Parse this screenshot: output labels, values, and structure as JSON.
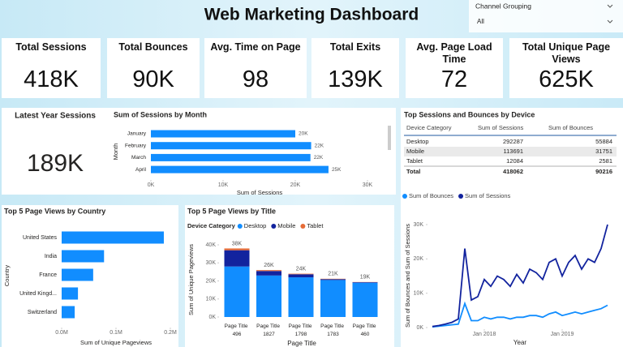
{
  "header": {
    "title": "Web Marketing Dashboard"
  },
  "slicer": {
    "label": "Channel Grouping",
    "value": "All"
  },
  "kpis": [
    {
      "label": "Total Sessions",
      "value": "418K"
    },
    {
      "label": "Total Bounces",
      "value": "90K"
    },
    {
      "label": "Avg. Time on Page",
      "value": "98"
    },
    {
      "label": "Total Exits",
      "value": "139K"
    },
    {
      "label": "Avg. Page Load Time",
      "value": "72"
    },
    {
      "label": "Total Unique Page Views",
      "value": "625K"
    }
  ],
  "latest_year": {
    "label": "Latest Year Sessions",
    "value": "189K"
  },
  "device_table": {
    "title": "Top Sessions and Bounces by Device",
    "columns": [
      "Device Category",
      "Sum of Sessions",
      "Sum of Bounces"
    ],
    "rows": [
      [
        "Desktop",
        292287,
        55884
      ],
      [
        "Mobile",
        113691,
        31751
      ],
      [
        "Tablet",
        12084,
        2581
      ]
    ],
    "total": [
      "Total",
      418062,
      90216
    ]
  },
  "chart_data": [
    {
      "type": "bar",
      "orientation": "horizontal",
      "title": "Sum of Sessions by Month",
      "categories": [
        "January",
        "February",
        "March",
        "April"
      ],
      "values": [
        20000,
        22200,
        22100,
        24600
      ],
      "value_labels": [
        "20K",
        "22K",
        "22K",
        "25K"
      ],
      "color": "#118DFF",
      "xlim": [
        0,
        30000
      ],
      "xticks": [
        {
          "value": 0,
          "label": "0K"
        },
        {
          "value": 10000,
          "label": "10K"
        },
        {
          "value": 20000,
          "label": "20K"
        },
        {
          "value": 30000,
          "label": "30K"
        }
      ],
      "xlabel": "Sum of Sessions",
      "ylabel": "Month"
    },
    {
      "type": "bar",
      "orientation": "horizontal",
      "title": "Top 5 Page Views by Country",
      "categories": [
        "United States",
        "India",
        "France",
        "United Kingd...",
        "Switzerland"
      ],
      "values": [
        188000,
        78000,
        58000,
        30000,
        24000
      ],
      "color": "#118DFF",
      "xlim": [
        0,
        200000
      ],
      "xticks": [
        {
          "value": 0,
          "label": "0.0M"
        },
        {
          "value": 100000,
          "label": "0.1M"
        },
        {
          "value": 200000,
          "label": "0.2M"
        }
      ],
      "xlabel": "Sum of Unique Pageviews",
      "ylabel": "Country"
    },
    {
      "type": "stacked_bar",
      "title": "Top 5 Page Views by Title",
      "legend_title": "Device Category",
      "categories": [
        "Page Title 496",
        "Page Title 1827",
        "Page Title 1798",
        "Page Title 1783",
        "Page Title 460"
      ],
      "series": [
        {
          "name": "Desktop",
          "color": "#118DFF",
          "values": [
            28000,
            23000,
            22000,
            20500,
            19000
          ]
        },
        {
          "name": "Mobile",
          "color": "#12239E",
          "values": [
            9000,
            2500,
            1700,
            500,
            300
          ]
        },
        {
          "name": "Tablet",
          "color": "#E66C37",
          "values": [
            1000,
            500,
            300,
            200,
            100
          ]
        }
      ],
      "totals": [
        38000,
        26000,
        24000,
        21200,
        19400
      ],
      "total_labels": [
        "38K",
        "26K",
        "24K",
        "21K",
        "19K"
      ],
      "ylim": [
        0,
        40000
      ],
      "yticks": [
        {
          "value": 0,
          "label": "0K"
        },
        {
          "value": 10000,
          "label": "10K"
        },
        {
          "value": 20000,
          "label": "20K"
        },
        {
          "value": 30000,
          "label": "30K"
        },
        {
          "value": 40000,
          "label": "40K"
        }
      ],
      "xlabel": "Page Title",
      "ylabel": "Sum of Unique Pageviews"
    },
    {
      "type": "line",
      "x": [
        "2017-05",
        "2017-06",
        "2017-07",
        "2017-08",
        "2017-09",
        "2017-10",
        "2017-11",
        "2017-12",
        "2018-01",
        "2018-02",
        "2018-03",
        "2018-04",
        "2018-05",
        "2018-06",
        "2018-07",
        "2018-08",
        "2018-09",
        "2018-10",
        "2018-11",
        "2018-12",
        "2019-01",
        "2019-02",
        "2019-03",
        "2019-04",
        "2019-05",
        "2019-06",
        "2019-07",
        "2019-08"
      ],
      "series": [
        {
          "name": "Sum of Bounces",
          "color": "#118DFF",
          "values": [
            200,
            400,
            600,
            800,
            1000,
            7000,
            2000,
            2000,
            3000,
            2500,
            3000,
            3000,
            2500,
            3000,
            3000,
            3500,
            3500,
            3000,
            4000,
            4500,
            3500,
            4000,
            4500,
            4000,
            4500,
            5000,
            5500,
            6500
          ]
        },
        {
          "name": "Sum of Sessions",
          "color": "#12239E",
          "values": [
            300,
            600,
            1000,
            1500,
            2500,
            23000,
            8000,
            9000,
            14000,
            12000,
            15000,
            14000,
            12000,
            15500,
            13000,
            17000,
            16000,
            14000,
            19000,
            20000,
            15000,
            19000,
            21000,
            17000,
            20000,
            19000,
            23000,
            30000
          ]
        }
      ],
      "xticks": [
        {
          "value": "2018-01",
          "label": "Jan 2018"
        },
        {
          "value": "2019-01",
          "label": "Jan 2019"
        }
      ],
      "ylim": [
        0,
        30000
      ],
      "yticks": [
        {
          "value": 0,
          "label": "0K"
        },
        {
          "value": 10000,
          "label": "10K"
        },
        {
          "value": 20000,
          "label": "20K"
        },
        {
          "value": 30000,
          "label": "30K"
        }
      ],
      "xlabel": "Year",
      "ylabel": "Sum of Bounces and Sum of Sessions"
    }
  ]
}
